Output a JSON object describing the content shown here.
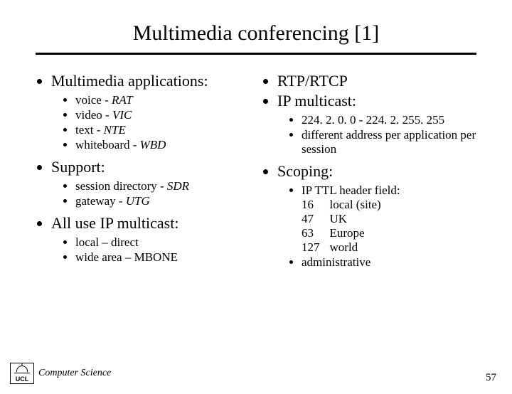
{
  "title": "Multimedia conferencing [1]",
  "left": {
    "h1": "Multimedia applications:",
    "apps": {
      "a1p": "voice - ",
      "a1i": "RAT",
      "a2p": "video - ",
      "a2i": "VIC",
      "a3p": "text - ",
      "a3i": "NTE",
      "a4p": "whiteboard - ",
      "a4i": "WBD"
    },
    "h2": "Support:",
    "support": {
      "s1p": "session directory - ",
      "s1i": "SDR",
      "s2p": "gateway - ",
      "s2i": "UTG"
    },
    "h3": "All use IP multicast:",
    "mcast": {
      "m1": "local – direct",
      "m2": "wide area – MBONE"
    }
  },
  "right": {
    "r1": "RTP/RTCP",
    "r2": "IP multicast:",
    "mcastSub": {
      "a": "224. 2. 0. 0 - 224. 2. 255. 255",
      "b": "different address per application per session"
    },
    "r3": "Scoping:",
    "scoping": {
      "ttlLabel": "IP TTL header field:",
      "t1a": "16",
      "t1b": "local (site)",
      "t2a": "47",
      "t2b": "UK",
      "t3a": "63",
      "t3b": "Europe",
      "t4a": "127",
      "t4b": "world",
      "admin": "administrative"
    }
  },
  "footer": {
    "org": "UCL",
    "dept": "Computer Science",
    "page": "57"
  }
}
